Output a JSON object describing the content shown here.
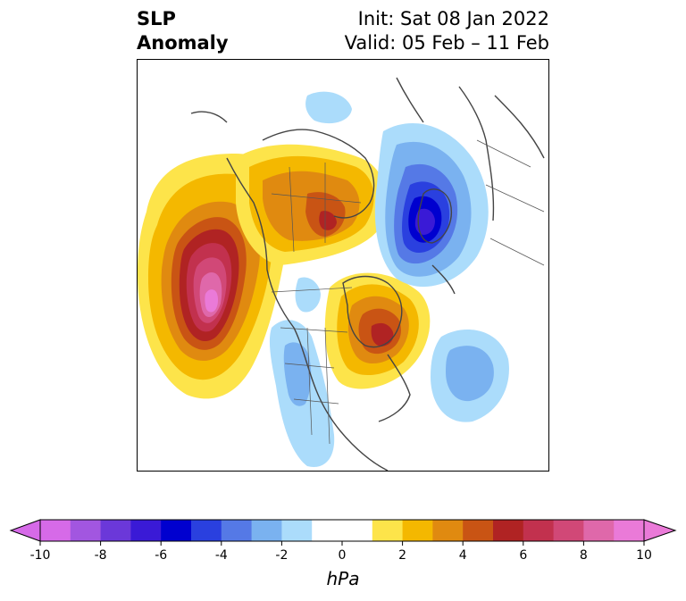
{
  "title": {
    "left_line1": "SLP",
    "left_line2": "Anomaly",
    "right_line1": "Init: Sat 08 Jan 2022",
    "right_line2": "Valid: 05 Feb – 11 Feb"
  },
  "colorbar": {
    "unit": "hPa",
    "min": -10,
    "max": 10,
    "step": 1,
    "extend": "both",
    "colors": [
      "#d66ae8",
      "#a256e0",
      "#6b38d9",
      "#3a1ad6",
      "#0000cf",
      "#2a40df",
      "#5579e6",
      "#7ab2f0",
      "#abdcfb",
      "#ffffff",
      "#ffffff",
      "#fde44a",
      "#f4b800",
      "#e08a10",
      "#c95414",
      "#b02323",
      "#c2314e",
      "#d14877",
      "#df68aa",
      "#ea7ad8"
    ],
    "ticks": [
      "-10",
      "-8",
      "-6",
      "-4",
      "-2",
      "0",
      "2",
      "4",
      "6",
      "8",
      "10"
    ]
  },
  "map": {
    "projection": "north polar stereographic",
    "anomalies": [
      {
        "region": "Northeast Pacific / Gulf of Alaska",
        "sign": "positive",
        "peak_hPa": 10
      },
      {
        "region": "Alaska / Bering Sea",
        "sign": "positive",
        "peak_hPa": 4
      },
      {
        "region": "Hudson Bay / Eastern Canada",
        "sign": "positive",
        "peak_hPa": 6
      },
      {
        "region": "Scandinavia / Barents Sea",
        "sign": "negative",
        "peak_hPa": -7
      },
      {
        "region": "North Atlantic",
        "sign": "negative",
        "peak_hPa": -3
      },
      {
        "region": "Western United States",
        "sign": "negative",
        "peak_hPa": -2
      }
    ]
  }
}
